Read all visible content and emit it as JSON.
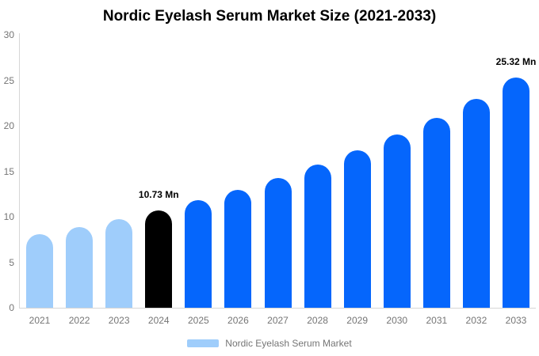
{
  "title": "Nordic Eyelash Serum Market Size (2021-2033)",
  "chart_data": {
    "type": "bar",
    "title": "Nordic Eyelash Serum Market Size (2021-2033)",
    "xlabel": "",
    "ylabel": "",
    "categories": [
      "2021",
      "2022",
      "2023",
      "2024",
      "2025",
      "2026",
      "2027",
      "2028",
      "2029",
      "2030",
      "2031",
      "2032",
      "2033"
    ],
    "values": [
      8.1,
      8.86,
      9.75,
      10.73,
      11.8,
      12.98,
      14.28,
      15.71,
      17.28,
      19.01,
      20.91,
      23.0,
      25.32
    ],
    "bar_colors": [
      "#9fcdfb",
      "#9fcdfb",
      "#9fcdfb",
      "#000000",
      "#0566fc",
      "#0566fc",
      "#0566fc",
      "#0566fc",
      "#0566fc",
      "#0566fc",
      "#0566fc",
      "#0566fc",
      "#0566fc"
    ],
    "annotations": [
      {
        "category": "2024",
        "text": "10.73 Mn"
      },
      {
        "category": "2033",
        "text": "25.32 Mn"
      }
    ],
    "ylim": [
      0,
      30
    ],
    "yticks": [
      0,
      5,
      10,
      15,
      20,
      25,
      30
    ],
    "grid": false,
    "legend": {
      "position": "bottom",
      "items": [
        {
          "label": "Nordic Eyelash Serum Market",
          "color": "#9fcdfb"
        }
      ]
    }
  },
  "colors": {
    "background": "#ffffff",
    "title": "#000000",
    "axis_line": "#d6d6d6",
    "tick_label": "#757575",
    "annotation": "#000000",
    "historical_bar": "#9fcdfb",
    "base_year_bar": "#000000",
    "forecast_bar": "#0566fc"
  }
}
